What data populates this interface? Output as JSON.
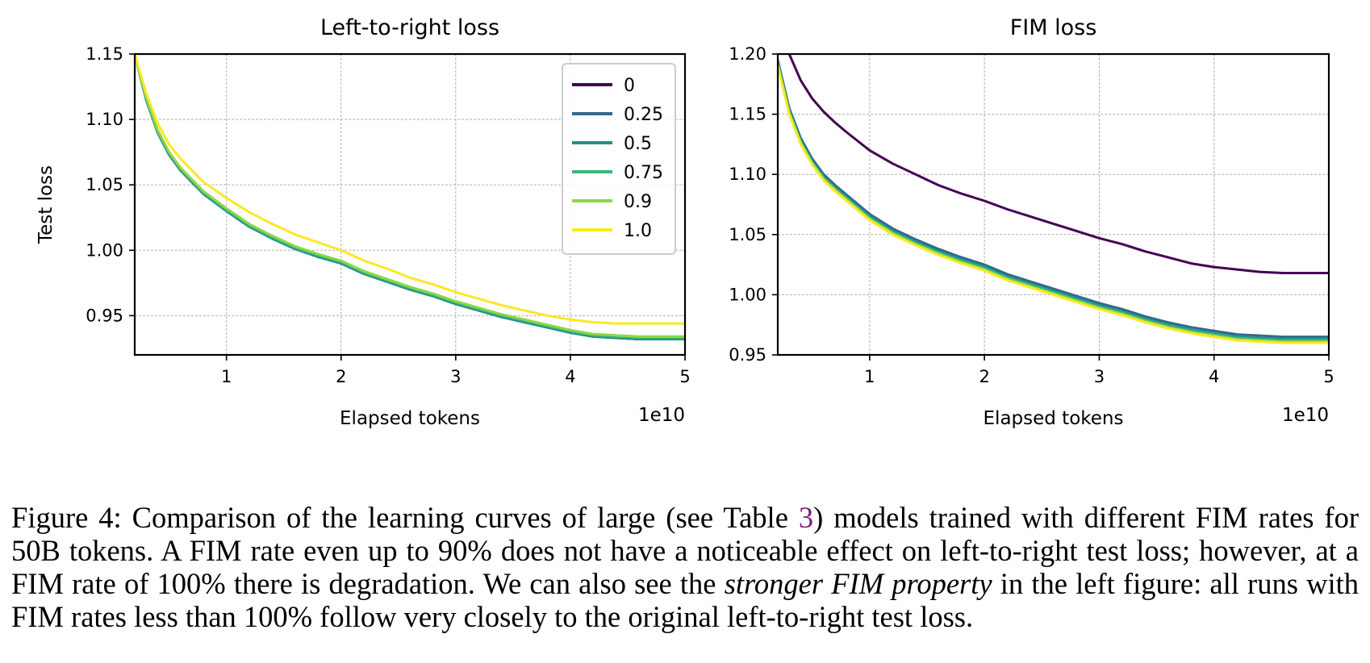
{
  "chart_data": [
    {
      "type": "line",
      "title": "Left-to-right loss",
      "xlabel": "Elapsed tokens",
      "ylabel": "Test loss",
      "x_offset_label": "1e10",
      "xlim": [
        0.2,
        5
      ],
      "ylim": [
        0.92,
        1.15
      ],
      "xticks": [
        1,
        2,
        3,
        4,
        5
      ],
      "xtick_labels": [
        "1",
        "2",
        "3",
        "4",
        "5"
      ],
      "yticks": [
        0.95,
        1.0,
        1.05,
        1.1,
        1.15
      ],
      "ytick_labels": [
        "0.95",
        "1.00",
        "1.05",
        "1.10",
        "1.15"
      ],
      "grid": true,
      "legend_position": "top-right",
      "x": [
        0.2,
        0.3,
        0.4,
        0.5,
        0.6,
        0.7,
        0.8,
        1.0,
        1.2,
        1.4,
        1.6,
        1.8,
        2.0,
        2.2,
        2.4,
        2.6,
        2.8,
        3.0,
        3.2,
        3.4,
        3.6,
        3.8,
        4.0,
        4.2,
        4.4,
        4.6,
        4.8,
        5.0
      ],
      "series": [
        {
          "name": "0",
          "color": "#440154",
          "values": [
            1.15,
            1.115,
            1.09,
            1.073,
            1.061,
            1.052,
            1.043,
            1.03,
            1.018,
            1.009,
            1.001,
            0.995,
            0.99,
            0.982,
            0.976,
            0.97,
            0.965,
            0.959,
            0.954,
            0.949,
            0.945,
            0.941,
            0.937,
            0.934,
            0.933,
            0.932,
            0.932,
            0.932
          ]
        },
        {
          "name": "0.25",
          "color": "#31688e",
          "values": [
            1.15,
            1.115,
            1.09,
            1.073,
            1.061,
            1.052,
            1.043,
            1.03,
            1.018,
            1.009,
            1.001,
            0.995,
            0.99,
            0.982,
            0.976,
            0.97,
            0.965,
            0.959,
            0.954,
            0.949,
            0.945,
            0.941,
            0.937,
            0.934,
            0.933,
            0.932,
            0.932,
            0.932
          ]
        },
        {
          "name": "0.5",
          "color": "#21918c",
          "values": [
            1.15,
            1.115,
            1.09,
            1.073,
            1.061,
            1.052,
            1.043,
            1.03,
            1.018,
            1.009,
            1.001,
            0.995,
            0.99,
            0.982,
            0.976,
            0.97,
            0.965,
            0.959,
            0.954,
            0.949,
            0.945,
            0.941,
            0.937,
            0.934,
            0.933,
            0.932,
            0.932,
            0.932
          ]
        },
        {
          "name": "0.75",
          "color": "#35b779",
          "values": [
            1.15,
            1.116,
            1.091,
            1.074,
            1.062,
            1.053,
            1.044,
            1.031,
            1.019,
            1.01,
            1.002,
            0.996,
            0.991,
            0.983,
            0.977,
            0.971,
            0.966,
            0.96,
            0.955,
            0.95,
            0.946,
            0.942,
            0.938,
            0.935,
            0.934,
            0.933,
            0.933,
            0.933
          ]
        },
        {
          "name": "0.9",
          "color": "#90d743",
          "values": [
            1.15,
            1.117,
            1.092,
            1.075,
            1.063,
            1.054,
            1.045,
            1.032,
            1.02,
            1.011,
            1.003,
            0.997,
            0.992,
            0.984,
            0.978,
            0.972,
            0.967,
            0.961,
            0.956,
            0.951,
            0.947,
            0.943,
            0.939,
            0.936,
            0.935,
            0.934,
            0.934,
            0.934
          ]
        },
        {
          "name": "1.0",
          "color": "#fde725",
          "values": [
            1.15,
            1.12,
            1.097,
            1.081,
            1.07,
            1.061,
            1.052,
            1.04,
            1.029,
            1.02,
            1.012,
            1.006,
            1.0,
            0.992,
            0.986,
            0.979,
            0.974,
            0.968,
            0.963,
            0.958,
            0.954,
            0.95,
            0.947,
            0.945,
            0.944,
            0.944,
            0.944,
            0.944
          ]
        }
      ]
    },
    {
      "type": "line",
      "title": "FIM loss",
      "xlabel": "Elapsed tokens",
      "ylabel": "",
      "x_offset_label": "1e10",
      "xlim": [
        0.2,
        5
      ],
      "ylim": [
        0.95,
        1.2
      ],
      "xticks": [
        1,
        2,
        3,
        4,
        5
      ],
      "xtick_labels": [
        "1",
        "2",
        "3",
        "4",
        "5"
      ],
      "yticks": [
        0.95,
        1.0,
        1.05,
        1.1,
        1.15,
        1.2
      ],
      "ytick_labels": [
        "0.95",
        "1.00",
        "1.05",
        "1.10",
        "1.15",
        "1.20"
      ],
      "grid": true,
      "x": [
        0.2,
        0.3,
        0.4,
        0.5,
        0.6,
        0.7,
        0.8,
        1.0,
        1.2,
        1.4,
        1.6,
        1.8,
        2.0,
        2.2,
        2.4,
        2.6,
        2.8,
        3.0,
        3.2,
        3.4,
        3.6,
        3.8,
        4.0,
        4.2,
        4.4,
        4.6,
        4.8,
        5.0
      ],
      "series": [
        {
          "name": "0",
          "color": "#440154",
          "values": [
            1.22,
            1.2,
            1.178,
            1.163,
            1.152,
            1.143,
            1.135,
            1.12,
            1.109,
            1.1,
            1.091,
            1.084,
            1.078,
            1.071,
            1.065,
            1.059,
            1.053,
            1.047,
            1.042,
            1.036,
            1.031,
            1.026,
            1.023,
            1.021,
            1.019,
            1.018,
            1.018,
            1.018
          ]
        },
        {
          "name": "0.25",
          "color": "#31688e",
          "values": [
            1.195,
            1.155,
            1.13,
            1.113,
            1.1,
            1.091,
            1.083,
            1.067,
            1.055,
            1.046,
            1.038,
            1.031,
            1.025,
            1.017,
            1.011,
            1.005,
            0.999,
            0.993,
            0.988,
            0.982,
            0.977,
            0.973,
            0.97,
            0.967,
            0.966,
            0.965,
            0.965,
            0.965
          ]
        },
        {
          "name": "0.5",
          "color": "#21918c",
          "values": [
            1.193,
            1.153,
            1.128,
            1.111,
            1.098,
            1.089,
            1.081,
            1.065,
            1.053,
            1.044,
            1.036,
            1.029,
            1.023,
            1.015,
            1.009,
            1.003,
            0.997,
            0.991,
            0.986,
            0.98,
            0.975,
            0.971,
            0.968,
            0.965,
            0.964,
            0.963,
            0.963,
            0.963
          ]
        },
        {
          "name": "0.75",
          "color": "#35b779",
          "values": [
            1.192,
            1.152,
            1.127,
            1.11,
            1.097,
            1.088,
            1.08,
            1.064,
            1.052,
            1.043,
            1.035,
            1.028,
            1.022,
            1.014,
            1.008,
            1.002,
            0.996,
            0.99,
            0.985,
            0.979,
            0.974,
            0.97,
            0.967,
            0.964,
            0.963,
            0.962,
            0.962,
            0.962
          ]
        },
        {
          "name": "0.9",
          "color": "#90d743",
          "values": [
            1.191,
            1.151,
            1.126,
            1.109,
            1.096,
            1.087,
            1.079,
            1.063,
            1.051,
            1.042,
            1.034,
            1.027,
            1.021,
            1.013,
            1.007,
            1.001,
            0.995,
            0.989,
            0.984,
            0.978,
            0.973,
            0.969,
            0.966,
            0.963,
            0.962,
            0.961,
            0.961,
            0.961
          ]
        },
        {
          "name": "1.0",
          "color": "#fde725",
          "values": [
            1.19,
            1.15,
            1.125,
            1.108,
            1.095,
            1.086,
            1.078,
            1.062,
            1.05,
            1.041,
            1.033,
            1.026,
            1.02,
            1.012,
            1.006,
            1.0,
            0.994,
            0.988,
            0.983,
            0.977,
            0.972,
            0.968,
            0.965,
            0.962,
            0.961,
            0.96,
            0.96,
            0.96
          ]
        }
      ]
    }
  ],
  "caption": {
    "label": "Figure 4:",
    "part1": " Comparison of the learning curves of large (see Table ",
    "table_ref": "3",
    "part2": ") models trained with different FIM rates for 50B tokens. A FIM rate even up to 90% does not have a noticeable effect on left-to-right test loss; however, at a FIM rate of 100% there is degradation. We can also see the ",
    "emphasis": "stronger FIM property",
    "part3": " in the left figure: all runs with FIM rates less than 100% follow very closely to the original left-to-right test loss."
  }
}
